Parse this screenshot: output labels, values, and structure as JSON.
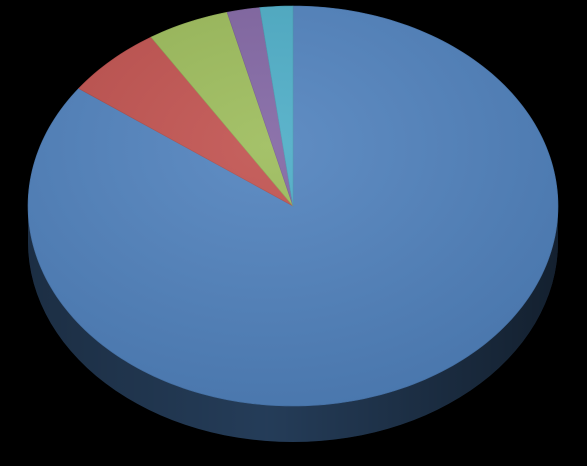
{
  "chart_data": {
    "type": "pie",
    "style": "3d",
    "title": "",
    "values": [
      85,
      6,
      5,
      2,
      2
    ],
    "colors": [
      "#4F81BD",
      "#C0504D",
      "#9BBB59",
      "#8064A2",
      "#4BACC6"
    ],
    "background": "#000000",
    "legend": "none",
    "data_labels": false
  }
}
